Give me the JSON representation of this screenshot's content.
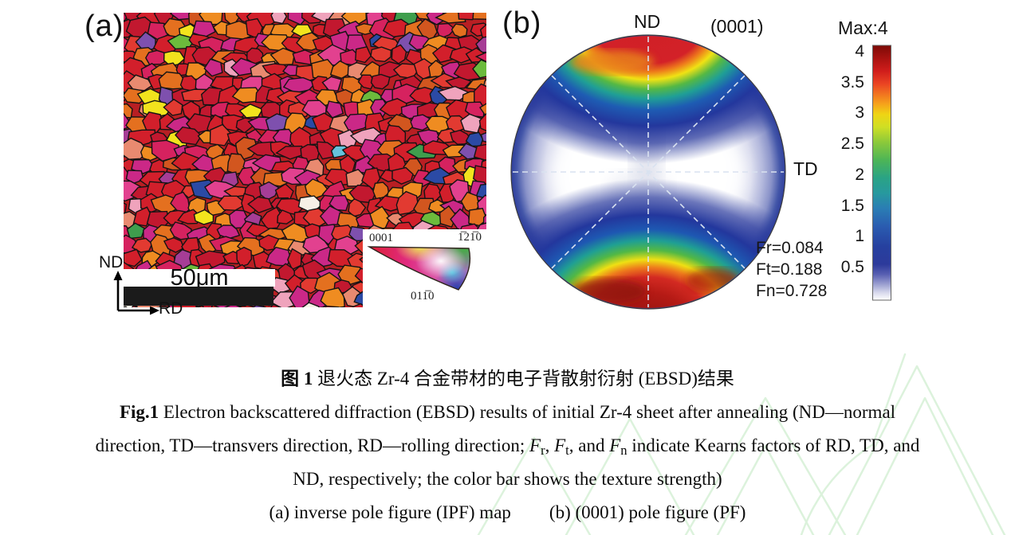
{
  "figure": {
    "panel_a": {
      "label": "(a)",
      "scale_bar_text": "50μm",
      "axis_up_label": "ND",
      "axis_right_label": "RD",
      "ipf_key_labels": {
        "top_left": "0001",
        "top_right": "1̅21̅0",
        "bottom": "011̅0"
      },
      "grain_palette": [
        {
          "color": "#d21f2b",
          "weight": 26
        },
        {
          "color": "#c2182f",
          "weight": 10
        },
        {
          "color": "#e23a31",
          "weight": 8
        },
        {
          "color": "#d6225f",
          "weight": 8
        },
        {
          "color": "#cb2887",
          "weight": 7
        },
        {
          "color": "#e2418f",
          "weight": 4
        },
        {
          "color": "#e4701f",
          "weight": 9
        },
        {
          "color": "#ef8c21",
          "weight": 7
        },
        {
          "color": "#d2561f",
          "weight": 4
        },
        {
          "color": "#e98a70",
          "weight": 3
        },
        {
          "color": "#efa3bc",
          "weight": 2
        },
        {
          "color": "#a63d96",
          "weight": 2
        },
        {
          "color": "#7e50ae",
          "weight": 2
        },
        {
          "color": "#f2e31d",
          "weight": 2
        },
        {
          "color": "#6cbb3c",
          "weight": 1.5
        },
        {
          "color": "#3f9e4d",
          "weight": 0.7
        },
        {
          "color": "#9fd9c3",
          "weight": 0.6
        },
        {
          "color": "#2b4aa5",
          "weight": 1.2
        },
        {
          "color": "#65c2dc",
          "weight": 0.5
        },
        {
          "color": "#f6f0e6",
          "weight": 0.5
        }
      ]
    },
    "panel_b": {
      "label": "(b)",
      "pole_label_top": "ND",
      "plane_label": "(0001)",
      "pole_label_right": "TD",
      "kearns_factors": [
        "Fr=0.084",
        "Ft=0.188",
        "Fn=0.728"
      ]
    },
    "colorbar": {
      "title": "Max:4",
      "ticks": [
        "4",
        "3.5",
        "3",
        "2.5",
        "2",
        "1.5",
        "1",
        "0.5"
      ]
    }
  },
  "caption": {
    "line1_segments": [
      {
        "t": "图 1",
        "style": "bold"
      },
      {
        "t": " 退火态 Zr-4 合金带材的电子背散射衍射 (EBSD)结果"
      }
    ],
    "line2_segments": [
      {
        "t": "Fig.1",
        "style": "bold"
      },
      {
        "t": " Electron backscattered diffraction (EBSD) results of initial Zr-4 sheet after annealing (ND—normal"
      }
    ],
    "line3_segments": [
      {
        "t": "direction, TD—transvers direction, RD—rolling direction; "
      },
      {
        "t": "F",
        "style": "italic"
      },
      {
        "t": "r",
        "style": "sub"
      },
      {
        "t": ", "
      },
      {
        "t": "F",
        "style": "italic"
      },
      {
        "t": "t",
        "style": "sub"
      },
      {
        "t": ", and "
      },
      {
        "t": "F",
        "style": "italic"
      },
      {
        "t": "n",
        "style": "sub"
      },
      {
        "t": " indicate Kearns factors of RD, TD, and"
      }
    ],
    "line4": "ND, respectively; the color bar shows the texture strength)",
    "line5_segments": [
      {
        "t": "(a) inverse pole figure (IPF) map"
      },
      {
        "t": "(b) (0001) pole figure (PF)",
        "style": "gap"
      }
    ]
  },
  "chart_data": [
    {
      "type": "heatmap",
      "title": "(0001) pole figure (PF)",
      "subtitle": "contour pole figure, stereographic projection",
      "annotations": [
        "ND (top)",
        "TD (right)",
        "(0001)",
        "Fr=0.084",
        "Ft=0.188",
        "Fn=0.728"
      ],
      "kearns_factors": {
        "Fr": 0.084,
        "Ft": 0.188,
        "Fn": 0.728
      },
      "intensity_range": [
        0,
        4
      ],
      "max_intensity": 4,
      "colorbar_ticks": [
        4,
        3.5,
        3,
        2.5,
        2,
        1.5,
        1,
        0.5
      ],
      "pattern": "high intensity (red, ~4) bands at top and bottom near ND poles, grading through yellow/green/cyan/blue inward; low intensity (<0.5, white) elongated central band toward TD",
      "legend_position": "right colorbar titled Max:4",
      "grid": "dashed radial guide lines at 0/45/90/135 degrees"
    },
    {
      "type": "heatmap",
      "title": "inverse pole figure (IPF) map",
      "subtitle": "EBSD grain orientation map of annealed Zr-4 sheet",
      "scale_bar": "50 μm",
      "axes": {
        "vertical": "ND",
        "horizontal": "RD"
      },
      "color_key_vertices": [
        "0001",
        "1̅21̅0",
        "011̅0"
      ],
      "pattern": "equiaxed grains dominated by red/orange/magenta (basal poles near ND) with sparse yellow, green, blue and purple grains"
    }
  ]
}
